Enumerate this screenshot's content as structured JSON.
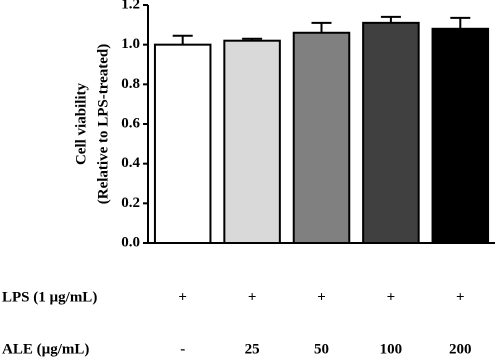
{
  "chart_data": {
    "type": "bar",
    "y_label": [
      "Cell viability",
      "(Relative to LPS-treated)"
    ],
    "categories": [
      "-",
      "25",
      "50",
      "100",
      "200"
    ],
    "row_labels": [
      "LPS (1 µg/mL)",
      "ALE (µg/mL)"
    ],
    "lps_row": [
      "+",
      "+",
      "+",
      "+",
      "+"
    ],
    "values": [
      1.0,
      1.02,
      1.06,
      1.11,
      1.08
    ],
    "errors": [
      0.045,
      0.01,
      0.05,
      0.03,
      0.055
    ],
    "colors": [
      "#ffffff",
      "#d9d9d9",
      "#808080",
      "#404040",
      "#000000"
    ],
    "ylim": [
      0,
      1.2
    ],
    "yticks": [
      {
        "value": 0,
        "label": "0.0"
      },
      {
        "value": 0.2,
        "label": "0.2"
      },
      {
        "value": 0.4,
        "label": "0.4"
      },
      {
        "value": 0.6,
        "label": "0.6"
      },
      {
        "value": 0.8,
        "label": "0.8"
      },
      {
        "value": 1.0,
        "label": "1.0"
      },
      {
        "value": 1.2,
        "label": "1.2"
      }
    ],
    "grid": false
  }
}
